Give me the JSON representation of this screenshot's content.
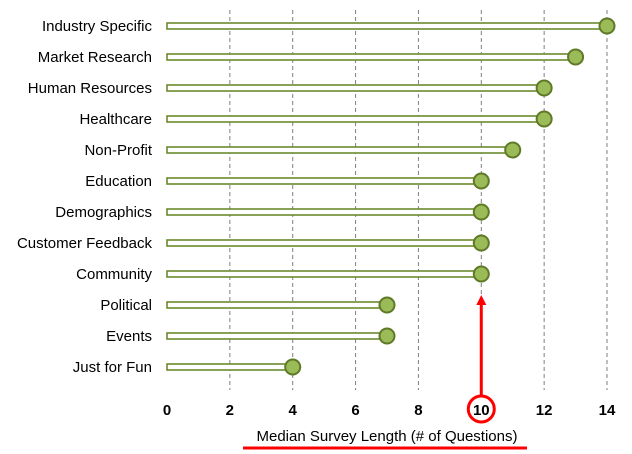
{
  "chart_data": {
    "type": "lollipop",
    "categories": [
      "Industry Specific",
      "Market Research",
      "Human Resources",
      "Healthcare",
      "Non-Profit",
      "Education",
      "Demographics",
      "Customer Feedback",
      "Community",
      "Political",
      "Events",
      "Just for Fun"
    ],
    "values": [
      14,
      13,
      12,
      12,
      11,
      10,
      10,
      10,
      10,
      7,
      7,
      4
    ],
    "xlabel": "Median Survey Length (# of Questions)",
    "xticks": [
      0,
      2,
      4,
      6,
      8,
      10,
      12,
      14
    ],
    "xlim": [
      0,
      14
    ],
    "highlight_tick": 10,
    "grid": "vertical-dashed",
    "colors": {
      "stem_fill": "#ffffff",
      "stem_stroke": "#6b8a2e",
      "marker_fill": "#9bbb59",
      "marker_stroke": "#5f7a27",
      "grid": "#7f7f7f",
      "annotation": "#ff0000"
    }
  }
}
